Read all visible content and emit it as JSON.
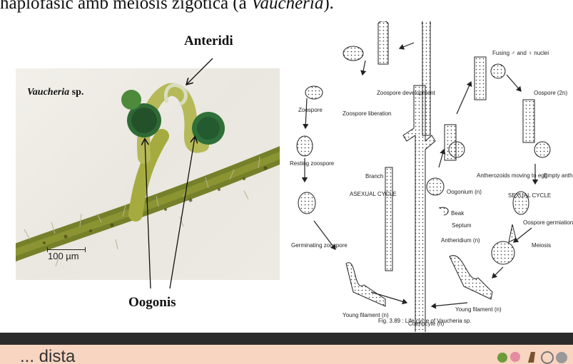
{
  "heading": {
    "prefix": "haplofàsic amb meiosis zigòtica (a ",
    "italic": "Vaucheria",
    "suffix": ")."
  },
  "photo": {
    "species_italic": "Vaucheria",
    "species_suffix": " sp.",
    "scale_label": "100 µm",
    "label_anteridi": "Anteridi",
    "label_oogonis": "Oogonis"
  },
  "diagram": {
    "labels": {
      "zoospore_development": "Zoospore development",
      "zoospore": "Zoospore",
      "zoospore_liberation": "Zoospore liberation",
      "resting_zoospore": "Resting zoospore",
      "branch": "Branch",
      "asexual_cycle": "ASEXUAL CYCLE",
      "germinating_zoospore": "Germinating zoospore",
      "fusing_nuclei": "Fusing ♂ and ♀ nuclei",
      "oospore_2n": "Oospore (2n)",
      "antherozoids": "Antherozoids moving to egg",
      "empty_antheridium": "Empty antheridium",
      "oogonium": "Oogonium (n)",
      "beak": "Beak",
      "septum": "Septum",
      "antheridium": "Antheridium (n)",
      "sexual_cycle": "SEXUAL CYCLE",
      "oospore_germination": "Oospore germiation",
      "meiosis": "Meiosis",
      "young_filament_left": "Young filament (n)",
      "young_filament_right": "Young filament (n)",
      "coenocyte": "Coenocyte (n)"
    },
    "caption": "Fig. 3.89 : Life cycle of Vaucheria sp."
  },
  "footer": {
    "text": "... dista"
  },
  "colors": {
    "footer_bg": "#f7d5c0",
    "dark_bar": "#2b2b2b",
    "filament": "#7f8a2a",
    "oogonium": "#2f6f3a"
  }
}
